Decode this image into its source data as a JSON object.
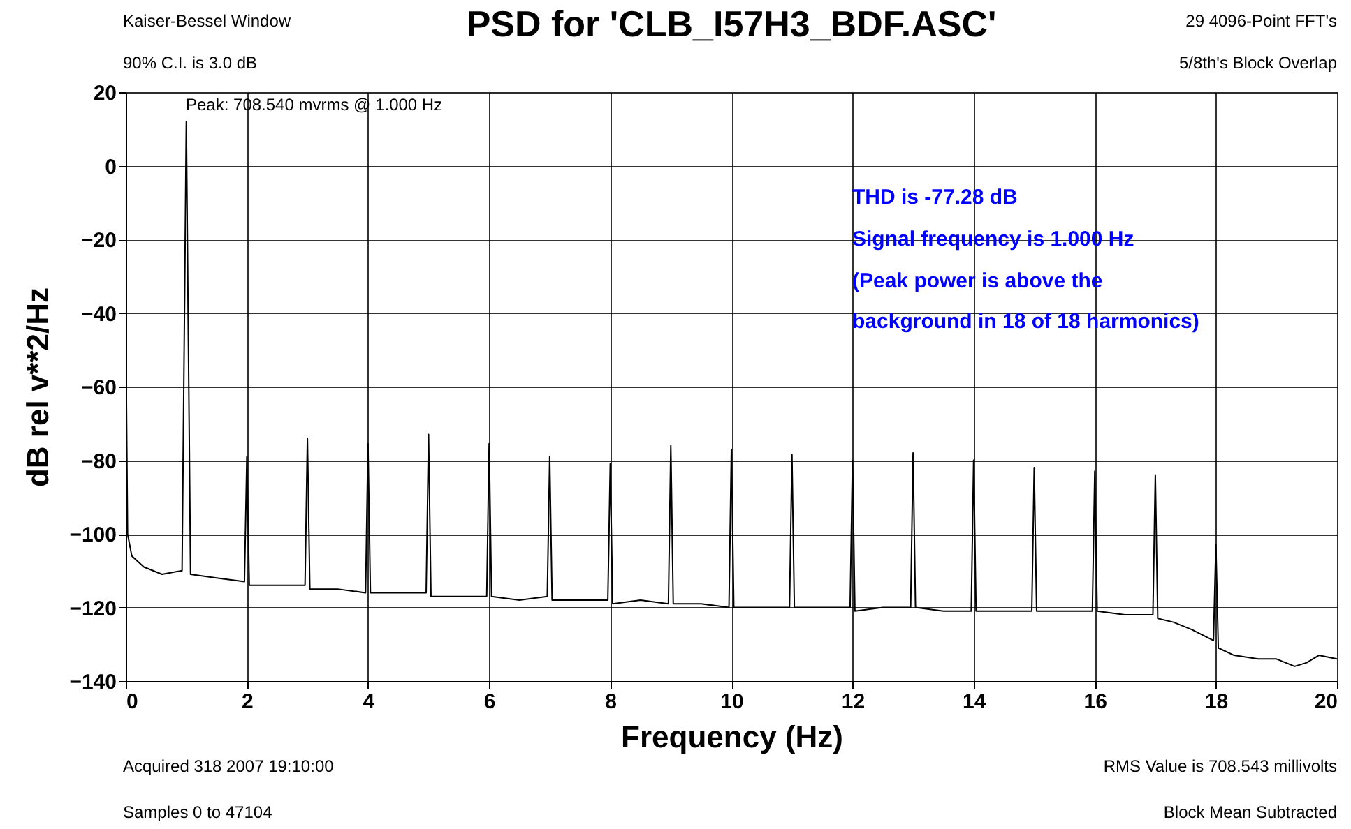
{
  "chart_data": {
    "type": "line",
    "title": "PSD for 'CLB_I57H3_BDF.ASC'",
    "xlabel": "Frequency (Hz)",
    "ylabel": "dB rel v**2/Hz",
    "xlim": [
      0,
      20
    ],
    "xticks": [
      0,
      2,
      4,
      6,
      8,
      10,
      12,
      14,
      16,
      18,
      20
    ],
    "ylim": [
      -140,
      20
    ],
    "yticks": [
      -140,
      -120,
      -100,
      -80,
      -60,
      -40,
      -20,
      0,
      20
    ],
    "grid": true,
    "marker": "none",
    "line_style": "solid",
    "series": [
      {
        "color": "#000000",
        "x": [
          0,
          0.03,
          0.1,
          0.3,
          0.6,
          0.93,
          1,
          1.07,
          1.5,
          1.96,
          2,
          2.04,
          2.5,
          2.96,
          3,
          3.04,
          3.5,
          3.96,
          4,
          4.04,
          4.5,
          4.96,
          5,
          5.04,
          5.5,
          5.96,
          6,
          6.04,
          6.5,
          6.96,
          7,
          7.04,
          7.5,
          7.96,
          8,
          8.04,
          8.5,
          8.96,
          9,
          9.04,
          9.5,
          9.96,
          10,
          10.04,
          10.5,
          10.96,
          11,
          11.04,
          11.5,
          11.96,
          12,
          12.04,
          12.5,
          12.96,
          13,
          13.04,
          13.5,
          13.96,
          14,
          14.04,
          14.5,
          14.96,
          15,
          15.04,
          15.5,
          15.96,
          16,
          16.04,
          16.5,
          16.96,
          17,
          17.04,
          17.3,
          17.6,
          17.96,
          18,
          18.04,
          18.3,
          18.7,
          19,
          19.3,
          19.5,
          19.7,
          20
        ],
        "values": [
          -42,
          -100,
          -106,
          -109,
          -111,
          -110,
          12,
          -111,
          -112,
          -113,
          -79,
          -114,
          -114,
          -114,
          -74,
          -115,
          -115,
          -116,
          -75.5,
          -116,
          -116,
          -116,
          -73,
          -117,
          -117,
          -117,
          -75.5,
          -117,
          -118,
          -117,
          -79,
          -118,
          -118,
          -118,
          -81,
          -119,
          -118,
          -119,
          -76,
          -119,
          -119,
          -120,
          -77,
          -120,
          -120,
          -120,
          -78.5,
          -120,
          -120,
          -120,
          -80,
          -121,
          -120,
          -120,
          -78,
          -120,
          -121,
          -121,
          -80,
          -121,
          -121,
          -121,
          -82,
          -121,
          -121,
          -121,
          -83,
          -121,
          -122,
          -122,
          -84,
          -123,
          -124,
          -126,
          -129,
          -103,
          -131,
          -133,
          -134,
          -134,
          -136,
          -135,
          -133,
          -134
        ]
      }
    ],
    "annotations": [
      "Kaiser-Bessel Window",
      "90% C.I. is 3.0 dB",
      "29  4096-Point FFT's",
      "5/8th's Block Overlap",
      "Acquired 318 2007 19:10:00",
      "Samples 0 to 47104",
      "RMS Value is 708.543 millivolts",
      "Block Mean Subtracted",
      "Peak: 708.540 mvrms @ 1.000 Hz",
      "THD is -77.28 dB",
      "Signal frequency is 1.000 Hz",
      "(Peak power is above the",
      "background in 18 of 18 harmonics)"
    ]
  }
}
